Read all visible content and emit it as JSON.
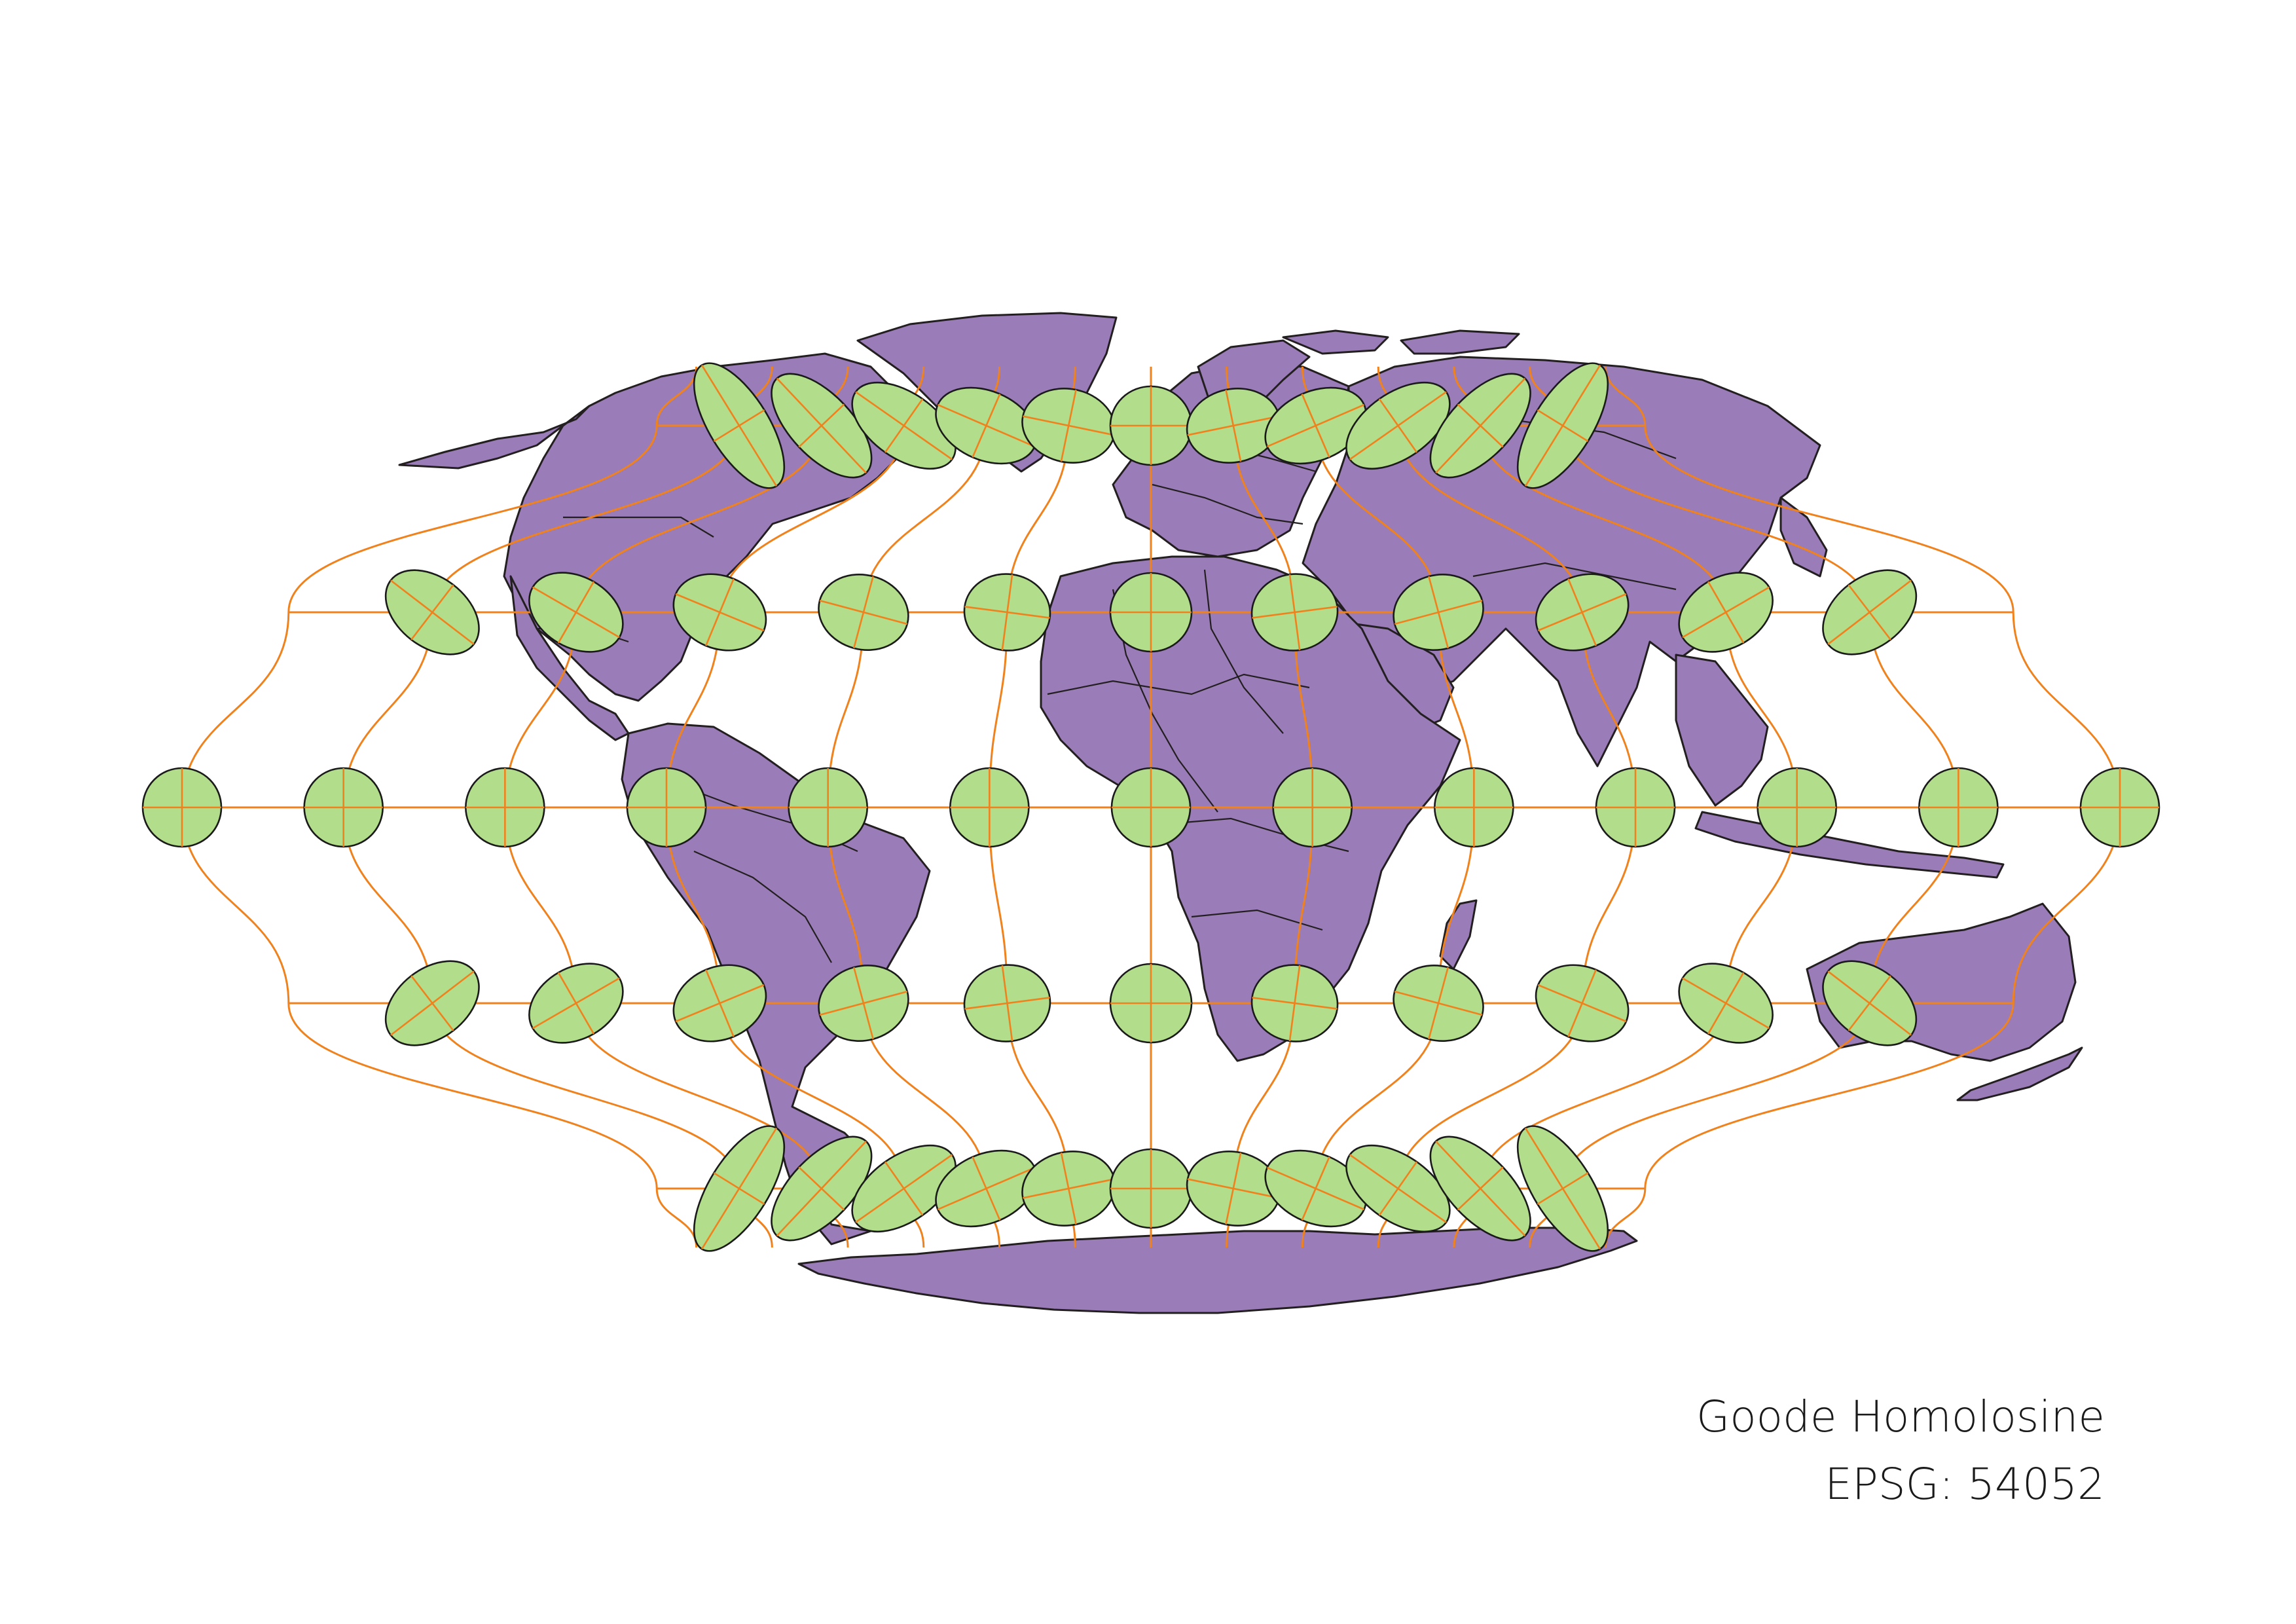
{
  "caption": {
    "projection_name": "Goode Homolosine",
    "epsg_label": "EPSG: 54052"
  },
  "map": {
    "layers": [
      "countries",
      "graticule",
      "tissot-indicatrices"
    ],
    "colors": {
      "land": "#9a7cb8",
      "coastline": "#231f20",
      "graticule": "#f0821e",
      "indicatrix": "#b2dd8a"
    },
    "graticule_parallels_deg": [
      -60,
      -30,
      0,
      30,
      60
    ],
    "graticule_meridians_deg": [
      -180,
      -150,
      -120,
      -90,
      -60,
      -30,
      0,
      30,
      60,
      90,
      120,
      150,
      180
    ]
  }
}
